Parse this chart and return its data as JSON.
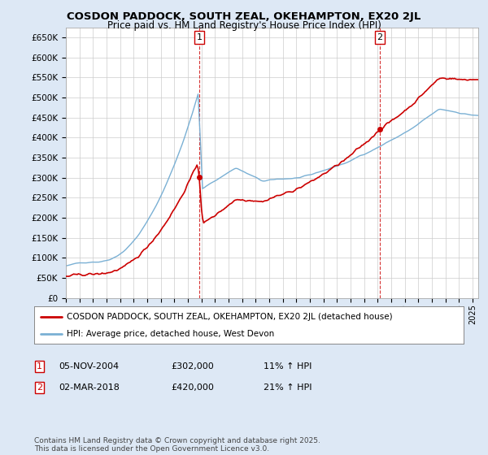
{
  "title": "COSDON PADDOCK, SOUTH ZEAL, OKEHAMPTON, EX20 2JL",
  "subtitle": "Price paid vs. HM Land Registry's House Price Index (HPI)",
  "ylabel_ticks": [
    "£0",
    "£50K",
    "£100K",
    "£150K",
    "£200K",
    "£250K",
    "£300K",
    "£350K",
    "£400K",
    "£450K",
    "£500K",
    "£550K",
    "£600K",
    "£650K"
  ],
  "ytick_values": [
    0,
    50000,
    100000,
    150000,
    200000,
    250000,
    300000,
    350000,
    400000,
    450000,
    500000,
    550000,
    600000,
    650000
  ],
  "sale1_idx": 118,
  "sale1_price": 302000,
  "sale2_idx": 278,
  "sale2_price": 420000,
  "legend1": "COSDON PADDOCK, SOUTH ZEAL, OKEHAMPTON, EX20 2JL (detached house)",
  "legend2": "HPI: Average price, detached house, West Devon",
  "row1_num": "1",
  "row1_date": "05-NOV-2004",
  "row1_price": "£302,000",
  "row1_hpi": "11% ↑ HPI",
  "row2_num": "2",
  "row2_date": "02-MAR-2018",
  "row2_price": "£420,000",
  "row2_hpi": "21% ↑ HPI",
  "footer": "Contains HM Land Registry data © Crown copyright and database right 2025.\nThis data is licensed under the Open Government Licence v3.0.",
  "bg_color": "#dde8f5",
  "plot_bg": "#ffffff",
  "hpi_color": "#7ab0d4",
  "price_color": "#cc0000",
  "vline_color": "#cc0000",
  "box_color": "#cc0000"
}
